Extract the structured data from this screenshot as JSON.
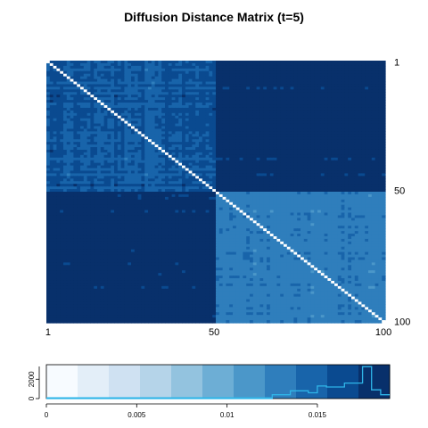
{
  "chart_data": [
    {
      "type": "heatmap",
      "title": "Diffusion Distance Matrix (t=5)",
      "xlabel": "",
      "ylabel": "",
      "n": 100,
      "x_ticks": [
        "1",
        "50",
        "100"
      ],
      "y_ticks_right": [
        "1",
        "50",
        "100"
      ],
      "clusters": [
        {
          "rows_from": 1,
          "rows_to": 50,
          "same_cluster_level": 0.0155,
          "cross_cluster_level": 0.0183
        },
        {
          "rows_from": 51,
          "rows_to": 100,
          "same_cluster_level": 0.0132,
          "cross_cluster_level": 0.0183
        }
      ],
      "diagonal_value": 0,
      "colormap": [
        "#f7fbff",
        "#e3eef8",
        "#cfe1f2",
        "#b5d4e9",
        "#93c3df",
        "#6daed5",
        "#4b97c9",
        "#2f7ebc",
        "#1864aa",
        "#0a4a90",
        "#08306b"
      ]
    },
    {
      "type": "bar",
      "title": "",
      "xlabel": "",
      "ylabel": "",
      "xlim": [
        0,
        0.019
      ],
      "x_ticks": [
        "0",
        "0.005",
        "0.01",
        "0.015"
      ],
      "y_ticks": [
        "0",
        "2000"
      ],
      "ylim": [
        0,
        3500
      ],
      "histogram_color": "#2fb5e8",
      "bins": [
        {
          "from": 0.0,
          "to": 0.0125,
          "count": 0
        },
        {
          "from": 0.0125,
          "to": 0.0135,
          "count": 400
        },
        {
          "from": 0.0135,
          "to": 0.0145,
          "count": 800
        },
        {
          "from": 0.0145,
          "to": 0.015,
          "count": 600
        },
        {
          "from": 0.015,
          "to": 0.0155,
          "count": 1300
        },
        {
          "from": 0.0155,
          "to": 0.0165,
          "count": 1200
        },
        {
          "from": 0.0165,
          "to": 0.0175,
          "count": 1600
        },
        {
          "from": 0.0175,
          "to": 0.018,
          "count": 3300
        },
        {
          "from": 0.018,
          "to": 0.0185,
          "count": 900
        },
        {
          "from": 0.0185,
          "to": 0.019,
          "count": 400
        }
      ]
    }
  ]
}
